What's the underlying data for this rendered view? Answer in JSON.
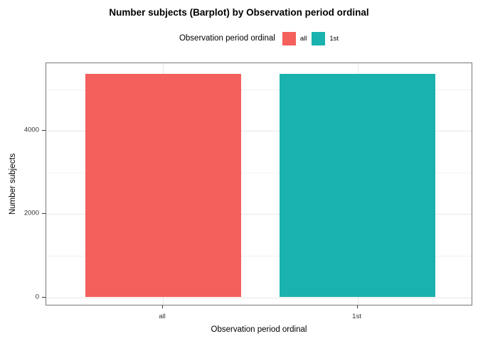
{
  "title": "Number subjects (Barplot) by Observation period ordinal",
  "legend": {
    "title": "Observation period ordinal",
    "items": [
      {
        "label": "all",
        "color": "#F4605C"
      },
      {
        "label": "1st",
        "color": "#19B2AE"
      }
    ]
  },
  "chart_data": {
    "type": "bar",
    "title": "Number subjects (Barplot) by Observation period ordinal",
    "categories": [
      "all",
      "1st"
    ],
    "values": [
      5370,
      5370
    ],
    "colors": [
      "#F4605C",
      "#19B2AE"
    ],
    "xlabel": "Observation period ordinal",
    "ylabel": "Number subjects",
    "ylim": [
      0,
      5620
    ],
    "yticks": [
      0,
      2000,
      4000
    ],
    "yticks_minor": [
      1000,
      3000,
      5000
    ],
    "grid": true,
    "legend_position": "top",
    "legend_title": "Observation period ordinal"
  }
}
